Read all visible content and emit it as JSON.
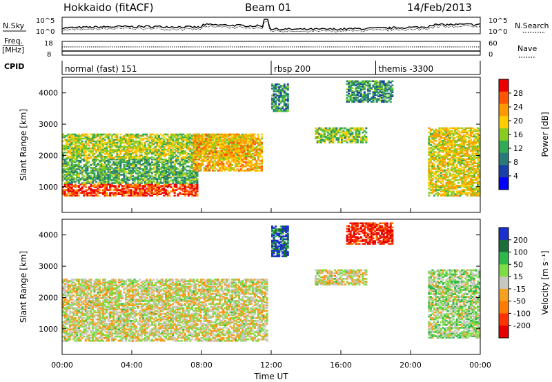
{
  "header": {
    "station": "Hokkaido (fitACF)",
    "beam": "Beam 01",
    "date": "14/Feb/2013"
  },
  "noise_panel": {
    "left_label": "N.Sky",
    "right_label": "N.Search",
    "left_ticks": [
      "10^5",
      "10^0"
    ],
    "right_ticks": [
      "10^5",
      "10^0"
    ]
  },
  "freq_panel": {
    "left_label_line1": "Freq.",
    "left_label_line2": "[MHz]",
    "left_ticks": [
      "18",
      "8"
    ],
    "right_label": "Nave",
    "right_ticks": [
      "60",
      "0"
    ]
  },
  "cpid_panel": {
    "label": "CPID",
    "modes": [
      {
        "name": "normal (fast) 151",
        "start_hour": 0
      },
      {
        "name": "rbsp 200",
        "start_hour": 12
      },
      {
        "name": "themis -3300",
        "start_hour": 18
      }
    ]
  },
  "power_panel": {
    "ylabel": "Slant Range [km]",
    "yticks": [
      "1000",
      "2000",
      "3000",
      "4000"
    ],
    "colorbar_label": "Power [dB]",
    "colorbar_ticks": [
      "28",
      "24",
      "20",
      "16",
      "12",
      "8",
      "4"
    ],
    "colors": [
      "#ee0000",
      "#ff5500",
      "#ff9900",
      "#ffcc00",
      "#88cc22",
      "#33aa55",
      "#2a7a77",
      "#1a3fa8",
      "#0000ff"
    ]
  },
  "velocity_panel": {
    "ylabel": "Slant Range [km]",
    "yticks": [
      "1000",
      "2000",
      "3000",
      "4000"
    ],
    "colorbar_label": "Velocity [m s⁻¹]",
    "colorbar_ticks": [
      "200",
      "100",
      "50",
      "15",
      "-15",
      "-50",
      "-100",
      "-200"
    ],
    "colors": [
      "#1a2fcc",
      "#1a6e3a",
      "#2fb84a",
      "#7edc44",
      "#c8c8c0",
      "#f5a020",
      "#ff7a00",
      "#ff3300",
      "#e60000"
    ]
  },
  "xaxis": {
    "ticks": [
      "00:00",
      "04:00",
      "08:00",
      "12:00",
      "16:00",
      "20:00",
      "00:00"
    ],
    "label": "Time UT"
  },
  "chart_data": {
    "type": "heatmap",
    "title": "Hokkaido (fitACF) Beam 01 14/Feb/2013",
    "xlabel": "Time UT",
    "ylabel": "Slant Range [km]",
    "xlim_hours": [
      0,
      24
    ],
    "ylim_km": [
      180,
      4500
    ],
    "power_range_db": [
      0,
      30
    ],
    "velocity_range_ms": [
      -250,
      250
    ],
    "power_regions": [
      {
        "t0": 0.0,
        "t1": 7.8,
        "r0": 700,
        "r1": 1100,
        "value_db": 26
      },
      {
        "t0": 0.0,
        "t1": 7.8,
        "r0": 1100,
        "r1": 1900,
        "value_db": 12
      },
      {
        "t0": 0.0,
        "t1": 11.0,
        "r0": 1900,
        "r1": 2700,
        "value_db": 16
      },
      {
        "t0": 7.5,
        "t1": 11.5,
        "r0": 1500,
        "r1": 2700,
        "value_db": 20
      },
      {
        "t0": 12.0,
        "t1": 13.0,
        "r0": 3400,
        "r1": 4300,
        "value_db": 10
      },
      {
        "t0": 14.5,
        "t1": 17.5,
        "r0": 2400,
        "r1": 2900,
        "value_db": 14
      },
      {
        "t0": 16.3,
        "t1": 19.0,
        "r0": 3700,
        "r1": 4400,
        "value_db": 10
      },
      {
        "t0": 21.0,
        "t1": 24.0,
        "r0": 700,
        "r1": 2900,
        "value_db": 18
      }
    ],
    "velocity_regions": [
      {
        "t0": 0.0,
        "t1": 11.8,
        "r0": 600,
        "r1": 2600,
        "value_ms": 0
      },
      {
        "t0": 12.0,
        "t1": 13.0,
        "r0": 3300,
        "r1": 4300,
        "value_ms": 200
      },
      {
        "t0": 16.3,
        "t1": 19.0,
        "r0": 3700,
        "r1": 4400,
        "value_ms": -200
      },
      {
        "t0": 14.5,
        "t1": 17.5,
        "r0": 2400,
        "r1": 2900,
        "value_ms": 0
      },
      {
        "t0": 21.0,
        "t1": 24.0,
        "r0": 700,
        "r1": 2900,
        "value_ms": 40
      }
    ]
  }
}
